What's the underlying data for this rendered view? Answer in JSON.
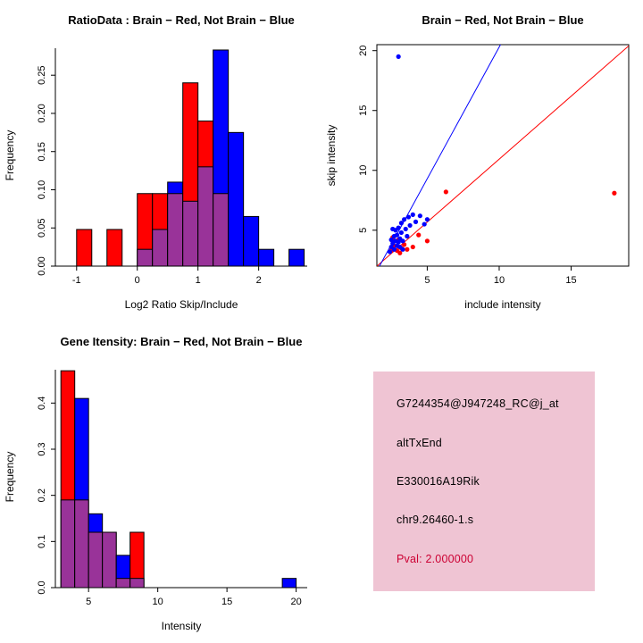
{
  "colors": {
    "red": "#FF0000",
    "blue": "#0000FF",
    "overlap": "#993399",
    "info_bg": "#EFC4D3",
    "pval_text": "#CC0033",
    "axis": "#000000"
  },
  "chart_data": [
    {
      "type": "bar",
      "subtype": "overlaid-histogram",
      "title": "RatioData : Brain − Red, Not Brain − Blue",
      "xlabel": "Log2 Ratio Skip/Include",
      "ylabel": "Frequency",
      "xlim": [
        -1.35,
        2.8
      ],
      "ylim": [
        0,
        0.29
      ],
      "xticks": [
        -1,
        0,
        1,
        2
      ],
      "xtick_labels": [
        "-1",
        "0",
        "1",
        "2"
      ],
      "yticks": [
        0,
        0.05,
        0.1,
        0.15,
        0.2,
        0.25
      ],
      "ytick_labels": [
        "0.00",
        "0.05",
        "0.10",
        "0.15",
        "0.20",
        "0.25"
      ],
      "bin_start": -1.0,
      "bin_width": 0.25,
      "grid": false,
      "series": [
        {
          "name": "Brain",
          "color_key": "red",
          "values": [
            0.048,
            0,
            0.048,
            0,
            0.095,
            0.095,
            0.095,
            0.24,
            0.19,
            0.095,
            0,
            0,
            0,
            0,
            0
          ]
        },
        {
          "name": "Not Brain",
          "color_key": "blue",
          "values": [
            0,
            0,
            0,
            0,
            0.022,
            0.048,
            0.11,
            0.085,
            0.13,
            0.283,
            0.175,
            0.065,
            0.022,
            0,
            0.022
          ]
        }
      ]
    },
    {
      "type": "scatter",
      "title": "Brain − Red, Not Brain − Blue",
      "xlabel": "include intensity",
      "ylabel": "skip intensity",
      "xlim": [
        1.5,
        19
      ],
      "ylim": [
        2,
        20.5
      ],
      "xticks": [
        5,
        10,
        15
      ],
      "xtick_labels": [
        "5",
        "10",
        "15"
      ],
      "yticks": [
        5,
        10,
        15,
        20
      ],
      "ytick_labels": [
        "5",
        "10",
        "15",
        "20"
      ],
      "grid": false,
      "series": [
        {
          "name": "Brain",
          "color_key": "red",
          "line": [
            [
              1.5,
              2.0
            ],
            [
              19.0,
              20.4
            ]
          ],
          "points": [
            [
              2.5,
              3.3
            ],
            [
              2.7,
              3.7
            ],
            [
              2.9,
              3.3
            ],
            [
              3.0,
              4.2
            ],
            [
              3.2,
              3.5
            ],
            [
              3.4,
              3.8
            ],
            [
              3.6,
              3.4
            ],
            [
              4.0,
              3.6
            ],
            [
              4.4,
              4.6
            ],
            [
              5.0,
              4.1
            ],
            [
              6.3,
              8.2
            ],
            [
              18.0,
              8.1
            ],
            [
              2.6,
              4.4
            ],
            [
              3.1,
              3.1
            ]
          ]
        },
        {
          "name": "Not Brain",
          "color_key": "blue",
          "line": [
            [
              1.5,
              1.6
            ],
            [
              11.0,
              22.5
            ]
          ],
          "points": [
            [
              3.0,
              19.5
            ],
            [
              2.4,
              3.2
            ],
            [
              2.5,
              3.6
            ],
            [
              2.5,
              4.2
            ],
            [
              2.6,
              3.9
            ],
            [
              2.6,
              5.1
            ],
            [
              2.7,
              4.5
            ],
            [
              2.7,
              3.4
            ],
            [
              2.8,
              4.1
            ],
            [
              2.8,
              5.0
            ],
            [
              2.9,
              3.7
            ],
            [
              2.9,
              4.6
            ],
            [
              3.0,
              4.0
            ],
            [
              3.0,
              5.2
            ],
            [
              3.1,
              4.3
            ],
            [
              3.1,
              3.6
            ],
            [
              3.2,
              5.6
            ],
            [
              3.2,
              4.8
            ],
            [
              3.3,
              4.1
            ],
            [
              3.3,
              3.4
            ],
            [
              3.4,
              5.9
            ],
            [
              3.5,
              5.1
            ],
            [
              3.6,
              4.5
            ],
            [
              3.7,
              6.1
            ],
            [
              3.8,
              5.4
            ],
            [
              4.0,
              6.3
            ],
            [
              4.2,
              5.7
            ],
            [
              4.5,
              6.2
            ],
            [
              4.8,
              5.5
            ],
            [
              5.0,
              5.9
            ]
          ]
        }
      ]
    },
    {
      "type": "bar",
      "subtype": "overlaid-histogram",
      "title": "Gene Itensity: Brain − Red, Not Brain − Blue",
      "xlabel": "Intensity",
      "ylabel": "Frequency",
      "xlim": [
        2.6,
        20.8
      ],
      "ylim": [
        0,
        0.48
      ],
      "xticks": [
        5,
        10,
        15,
        20
      ],
      "xtick_labels": [
        "5",
        "10",
        "15",
        "20"
      ],
      "yticks": [
        0,
        0.1,
        0.2,
        0.3,
        0.4
      ],
      "ytick_labels": [
        "0.0",
        "0.1",
        "0.2",
        "0.3",
        "0.4"
      ],
      "bin_start": 3,
      "bin_width": 1,
      "grid": false,
      "series": [
        {
          "name": "Brain",
          "color_key": "red",
          "values": [
            0.47,
            0.19,
            0.12,
            0.12,
            0.02,
            0.12,
            0,
            0,
            0,
            0,
            0,
            0,
            0,
            0,
            0,
            0,
            0
          ]
        },
        {
          "name": "Not Brain",
          "color_key": "blue",
          "values": [
            0.19,
            0.41,
            0.16,
            0.12,
            0.07,
            0.02,
            0,
            0,
            0,
            0,
            0,
            0,
            0,
            0,
            0,
            0,
            0.02
          ]
        }
      ]
    }
  ],
  "info_panel": {
    "lines": [
      "G7244354@J947248_RC@j_at",
      "altTxEnd",
      "E330016A19Rik",
      "chr9.26460-1.s"
    ],
    "pval": "Pval: 2.000000"
  }
}
